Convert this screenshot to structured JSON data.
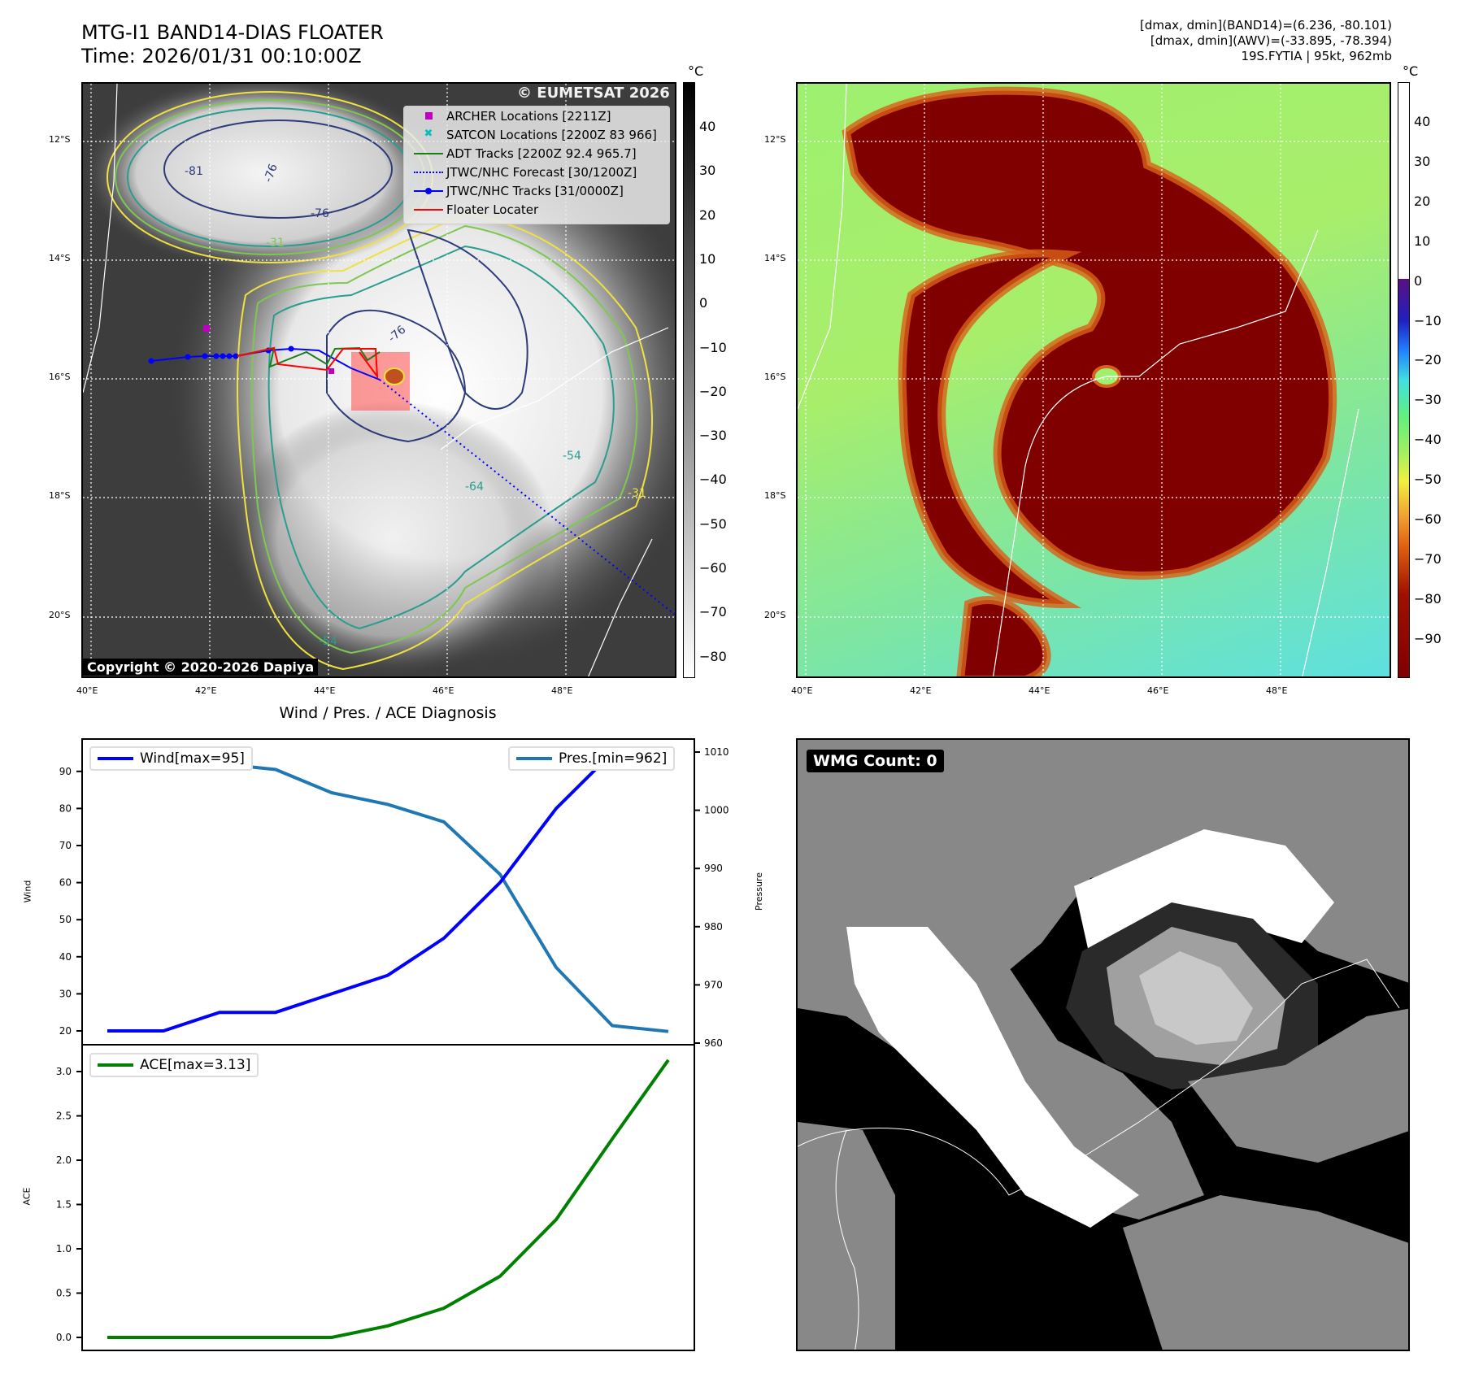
{
  "header": {
    "title": "MTG-I1 BAND14-DIAS FLOATER",
    "time": "Time: 2026/01/31 00:10:00Z",
    "info": [
      "[dmax, dmin](BAND14)=(6.236, -80.101)",
      "[dmax, dmin](AWV)=(-33.895, -78.394)",
      "19S.FYTIA | 95kt, 962mb"
    ]
  },
  "map": {
    "lat_labels": [
      "12°S",
      "14°S",
      "16°S",
      "18°S",
      "20°S"
    ],
    "lon_labels": [
      "40°E",
      "42°E",
      "44°E",
      "46°E",
      "48°E"
    ],
    "watermark": "© EUMETSAT 2026",
    "copyright": "Copyright © 2020-2026 Dapiya",
    "contour_labels": [
      "-76",
      "-76",
      "-76",
      "-54",
      "-64",
      "-31",
      "-31",
      "-54",
      "-81"
    ],
    "legend": [
      {
        "label": "ARCHER Locations [2211Z]",
        "color": "#c000c0"
      },
      {
        "label": "SATCON Locations [2200Z 83 966]",
        "color": "#00c0c0"
      },
      {
        "label": "ADT Tracks [2200Z 92.4 965.7]",
        "color": "#1a7f1a"
      },
      {
        "label": "JTWC/NHC Forecast [30/1200Z]",
        "color": "#0000ff"
      },
      {
        "label": "JTWC/NHC Tracks [31/0000Z]",
        "color": "#0000ff"
      },
      {
        "label": "Floater Locater",
        "color": "#ff0000"
      }
    ]
  },
  "colorbar_left": {
    "unit": "°C",
    "ticks": [
      "40",
      "30",
      "20",
      "10",
      "0",
      "−10",
      "−20",
      "−30",
      "−40",
      "−50",
      "−60",
      "−70",
      "−80"
    ]
  },
  "colorbar_right": {
    "unit": "°C",
    "ticks": [
      "40",
      "30",
      "20",
      "10",
      "0",
      "−10",
      "−20",
      "−30",
      "−40",
      "−50",
      "−60",
      "−70",
      "−80",
      "−90"
    ]
  },
  "wmg": {
    "label": "WMG Count: 0"
  },
  "colors": {
    "wind": "#0000ff",
    "pressure": "#1f77b4",
    "ace": "#008000"
  },
  "chart_data": [
    {
      "type": "line",
      "title": "Wind / Pres. / ACE Diagnosis",
      "x": [
        0,
        1,
        2,
        3,
        4,
        5,
        6,
        7,
        8,
        9,
        10
      ],
      "series": [
        {
          "name": "Wind[max=95]",
          "axis": "left",
          "values": [
            20,
            20,
            25,
            25,
            30,
            35,
            45,
            60,
            80,
            95,
            95
          ]
        },
        {
          "name": "Pres.[min=962]",
          "axis": "right",
          "values": [
            1010,
            1010,
            1008,
            1007,
            1003,
            1001,
            998,
            989,
            973,
            963,
            962
          ]
        }
      ],
      "ylabel": "Wind",
      "y2label": "Pressure",
      "yticks": [
        "20",
        "30",
        "40",
        "50",
        "60",
        "70",
        "80",
        "90"
      ],
      "y2ticks": [
        "960",
        "970",
        "980",
        "990",
        "1000",
        "1010"
      ],
      "ylim": [
        18,
        97
      ],
      "y2lim": [
        959.5,
        1012
      ]
    },
    {
      "type": "line",
      "x": [
        0,
        1,
        2,
        3,
        4,
        5,
        6,
        7,
        8,
        9,
        10
      ],
      "series": [
        {
          "name": "ACE[max=3.13]",
          "values": [
            0,
            0,
            0,
            0,
            0,
            0.13,
            0.33,
            0.69,
            1.33,
            2.24,
            3.13
          ]
        }
      ],
      "ylabel": "ACE",
      "yticks": [
        "0.0",
        "0.5",
        "1.0",
        "1.5",
        "2.0",
        "2.5",
        "3.0"
      ],
      "ylim": [
        -0.15,
        3.2
      ]
    }
  ]
}
